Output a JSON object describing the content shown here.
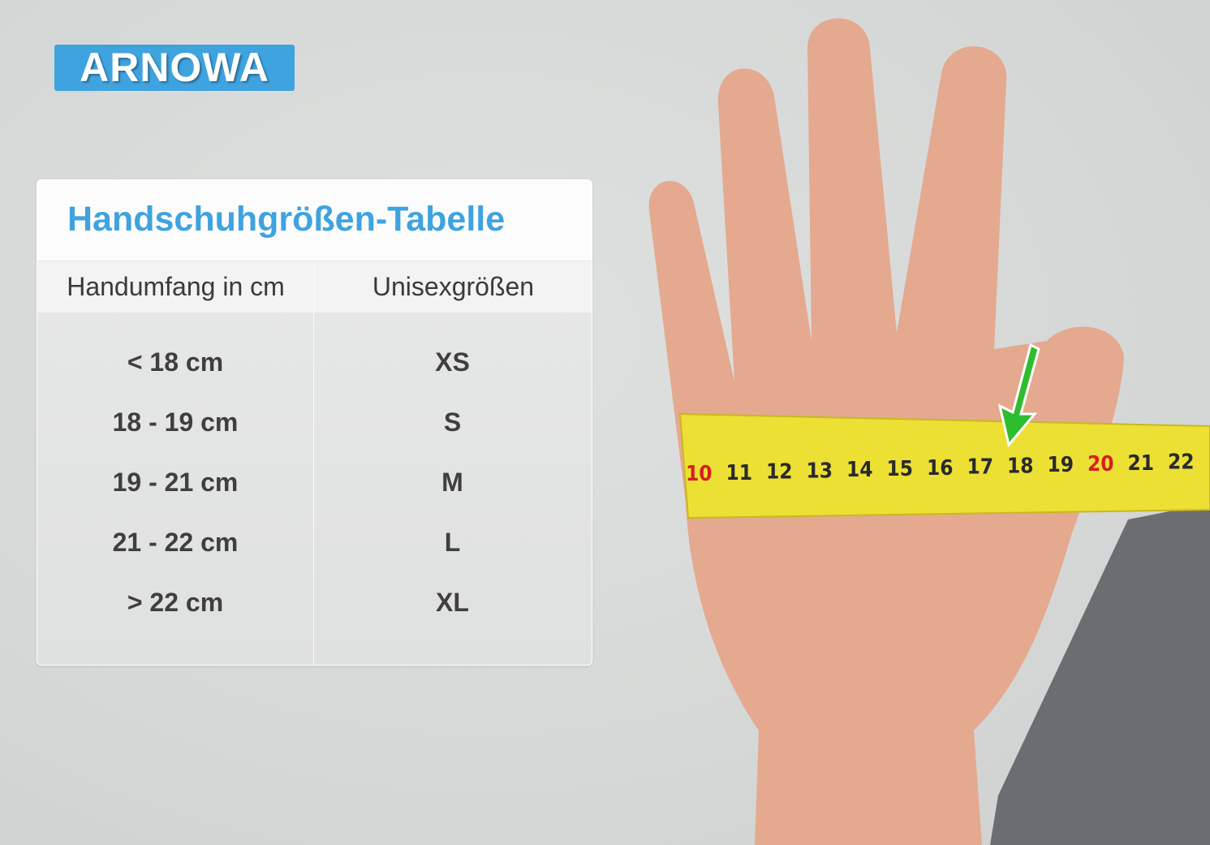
{
  "logo": {
    "text": "ARNOWA",
    "color": "#3fa3df"
  },
  "table": {
    "title": "Handschuhgrößen-Tabelle",
    "headers": [
      "Handumfang in cm",
      "Unisexgrößen"
    ],
    "rows": [
      {
        "circumference": "< 18 cm",
        "size": "XS"
      },
      {
        "circumference": "18 - 19 cm",
        "size": "S"
      },
      {
        "circumference": "19 - 21 cm",
        "size": "M"
      },
      {
        "circumference": "21 - 22 cm",
        "size": "L"
      },
      {
        "circumference": "> 22 cm",
        "size": "XL"
      }
    ]
  },
  "tape": {
    "labels": [
      "10",
      "11",
      "12",
      "13",
      "14",
      "15",
      "16",
      "17",
      "18",
      "19",
      "20",
      "21",
      "22"
    ],
    "red_labels": [
      "10",
      "20"
    ]
  }
}
